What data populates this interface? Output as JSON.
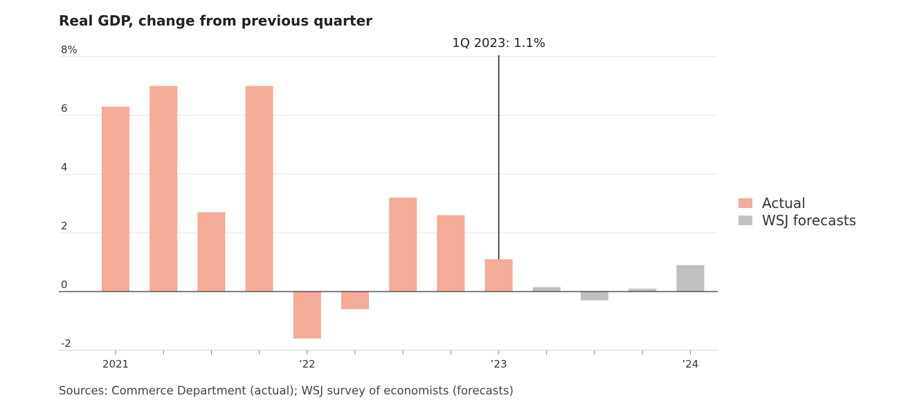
{
  "chart_data": {
    "type": "bar",
    "title": "Real GDP, change from previous quarter",
    "xlabel": "",
    "ylabel": "",
    "ylim": [
      -2,
      8
    ],
    "yticks": [
      -2,
      0,
      2,
      4,
      6,
      8
    ],
    "ytick_labels": [
      "-2",
      "0",
      "2",
      "4",
      "6",
      "8%"
    ],
    "categories": [
      "1Q 2021",
      "2Q 2021",
      "3Q 2021",
      "4Q 2021",
      "1Q 2022",
      "2Q 2022",
      "3Q 2022",
      "4Q 2022",
      "1Q 2023",
      "2Q 2023",
      "3Q 2023",
      "4Q 2023",
      "1Q 2024"
    ],
    "xtick_labels": [
      {
        "index": 0,
        "label": "2021"
      },
      {
        "index": 4,
        "label": "’22"
      },
      {
        "index": 8,
        "label": "’23"
      },
      {
        "index": 12,
        "label": "’24"
      }
    ],
    "series": [
      {
        "name": "Actual",
        "color": "#f4ab98",
        "values": [
          6.3,
          7.0,
          2.7,
          7.0,
          -1.6,
          -0.6,
          3.2,
          2.6,
          1.1,
          null,
          null,
          null,
          null
        ]
      },
      {
        "name": "WSJ forecasts",
        "color": "#c0c0c0",
        "values": [
          null,
          null,
          null,
          null,
          null,
          null,
          null,
          null,
          null,
          0.15,
          -0.3,
          0.1,
          0.9
        ]
      }
    ],
    "annotation": {
      "label": "1Q 2023: 1.1%",
      "index": 8
    },
    "legend": {
      "position": "right"
    },
    "grid": true,
    "source": "Sources: Commerce Department (actual); WSJ survey of economists (forecasts)"
  }
}
